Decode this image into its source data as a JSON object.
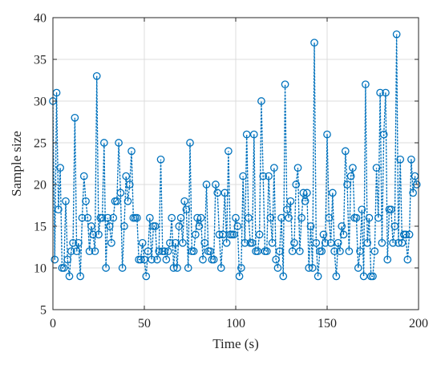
{
  "chart_data": {
    "type": "scatter",
    "style": "dotted line with circle markers",
    "xlabel": "Time (s)",
    "ylabel": "Sample size",
    "xlim": [
      0,
      200
    ],
    "ylim": [
      5,
      40
    ],
    "xticks": [
      0,
      50,
      100,
      150,
      200
    ],
    "yticks": [
      5,
      10,
      15,
      20,
      25,
      30,
      35,
      40
    ],
    "grid": true,
    "series_color": "#0072BD",
    "series": [
      {
        "x": [
          0,
          1,
          2,
          3,
          4,
          5,
          6,
          7,
          8,
          9,
          10,
          11,
          12,
          13,
          14,
          15,
          16,
          17,
          18,
          19,
          20,
          21,
          22,
          23,
          24,
          25,
          26,
          27,
          28,
          29,
          30,
          31,
          32,
          33,
          34,
          35,
          36,
          37,
          38,
          39,
          40,
          41,
          42,
          43,
          44,
          45,
          46,
          47,
          48,
          49,
          50,
          51,
          52,
          53,
          54,
          55,
          56,
          57,
          58,
          59,
          60,
          61,
          62,
          63,
          64,
          65,
          66,
          67,
          68,
          69,
          70,
          71,
          72,
          73,
          74,
          75,
          76,
          77,
          78,
          79,
          80,
          81,
          82,
          83,
          84,
          85,
          86,
          87,
          88,
          89,
          90,
          91,
          92,
          93,
          94,
          95,
          96,
          97,
          98,
          99,
          100,
          101,
          102,
          103,
          104,
          105,
          106,
          107,
          108,
          109,
          110,
          111,
          112,
          113,
          114,
          115,
          116,
          117,
          118,
          119,
          120,
          121,
          122,
          123,
          124,
          125,
          126,
          127,
          128,
          129,
          130,
          131,
          132,
          133,
          134,
          135,
          136,
          137,
          138,
          139,
          140,
          141,
          142,
          143,
          144,
          145,
          146,
          147,
          148,
          149,
          150,
          151,
          152,
          153,
          154,
          155,
          156,
          157,
          158,
          159,
          160,
          161,
          162,
          163,
          164,
          165,
          166,
          167,
          168,
          169,
          170,
          171,
          172,
          173,
          174,
          175,
          176,
          177,
          178,
          179,
          180,
          181,
          182,
          183,
          184,
          185,
          186,
          187,
          188,
          189,
          190,
          191,
          192,
          193,
          194,
          195,
          196,
          197,
          198,
          199
        ],
        "y": [
          30,
          11,
          31,
          17,
          22,
          10,
          10,
          18,
          11,
          9,
          12,
          13,
          28,
          12,
          13,
          9,
          16,
          21,
          18,
          16,
          12,
          15,
          14,
          12,
          33,
          14,
          16,
          16,
          25,
          10,
          16,
          15,
          13,
          16,
          18,
          18,
          25,
          19,
          10,
          15,
          21,
          18,
          20,
          24,
          16,
          16,
          16,
          11,
          11,
          13,
          11,
          9,
          12,
          16,
          11,
          15,
          15,
          11,
          12,
          23,
          12,
          12,
          11,
          12,
          13,
          16,
          10,
          13,
          10,
          15,
          16,
          13,
          18,
          17,
          10,
          25,
          12,
          12,
          14,
          16,
          15,
          16,
          11,
          13,
          20,
          12,
          12,
          11,
          11,
          20,
          19,
          14,
          10,
          14,
          19,
          13,
          24,
          14,
          14,
          14,
          16,
          15,
          9,
          10,
          21,
          13,
          26,
          16,
          13,
          13,
          26,
          12,
          12,
          14,
          30,
          21,
          12,
          12,
          21,
          16,
          13,
          22,
          11,
          10,
          12,
          16,
          9,
          32,
          17,
          16,
          18,
          12,
          13,
          20,
          22,
          12,
          16,
          19,
          18,
          19,
          10,
          15,
          10,
          37,
          13,
          9,
          12,
          12,
          14,
          13,
          26,
          16,
          13,
          19,
          12,
          9,
          13,
          12,
          15,
          14,
          24,
          20,
          12,
          21,
          22,
          16,
          16,
          10,
          12,
          17,
          9,
          32,
          13,
          16,
          9,
          9,
          12,
          22,
          16,
          31,
          13,
          26,
          31,
          11,
          17,
          17,
          13,
          15,
          38,
          13,
          23,
          13,
          14,
          14,
          11,
          14,
          23,
          19,
          21,
          20
        ]
      }
    ]
  }
}
